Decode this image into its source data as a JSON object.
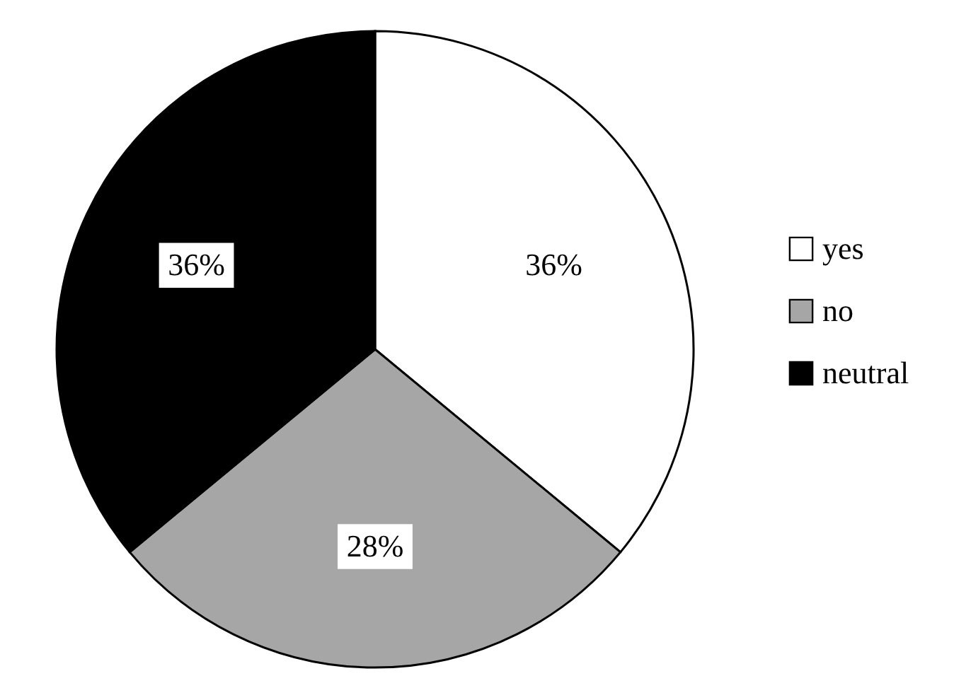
{
  "chart_data": {
    "type": "pie",
    "categories": [
      "yes",
      "no",
      "neutral"
    ],
    "values": [
      36,
      28,
      36
    ],
    "colors": [
      "#ffffff",
      "#a6a6a6",
      "#000000"
    ],
    "value_labels": [
      "36%",
      "28%",
      "36%"
    ],
    "legend": "right"
  }
}
